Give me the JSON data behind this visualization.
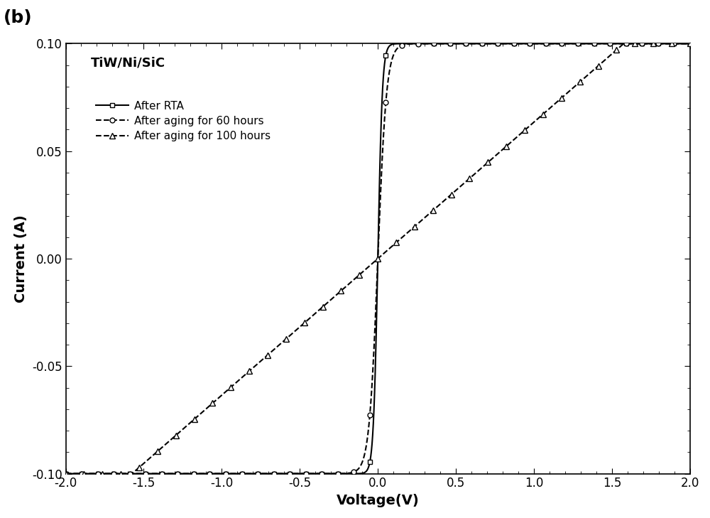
{
  "title_label": "(b)",
  "system_label": "TiW/Ni/SiC",
  "xlabel": "Voltage(V)",
  "ylabel": "Current (A)",
  "xlim": [
    -2.0,
    2.0
  ],
  "ylim": [
    -0.1,
    0.1
  ],
  "xticks": [
    -2.0,
    -1.5,
    -1.0,
    -0.5,
    0.0,
    0.5,
    1.0,
    1.5,
    2.0
  ],
  "yticks": [
    -0.1,
    -0.05,
    0.0,
    0.05,
    0.1
  ],
  "series": [
    {
      "label": "After RTA",
      "marker": "s",
      "linestyle": "-",
      "linewidth": 1.5,
      "markersize": 5,
      "k": 35.0,
      "v_shift": 0.0,
      "i_sat": 0.1,
      "n_markers": 40
    },
    {
      "label": "After aging for 60 hours",
      "marker": "o",
      "linestyle": "--",
      "linewidth": 1.5,
      "markersize": 5,
      "k": 18.0,
      "v_shift": 0.0,
      "i_sat": 0.1,
      "n_markers": 40
    },
    {
      "label": "After aging for 100 hours",
      "marker": "^",
      "linestyle": "--",
      "linewidth": 1.5,
      "markersize": 6,
      "k": 0.0,
      "v_shift": 0.0,
      "slope": 0.0635,
      "i_sat": 0.1,
      "n_markers": 35
    }
  ],
  "color": "#000000",
  "background_color": "#ffffff",
  "font_size_labels": 14,
  "font_size_ticks": 12,
  "font_size_legend": 11,
  "font_size_system": 13
}
